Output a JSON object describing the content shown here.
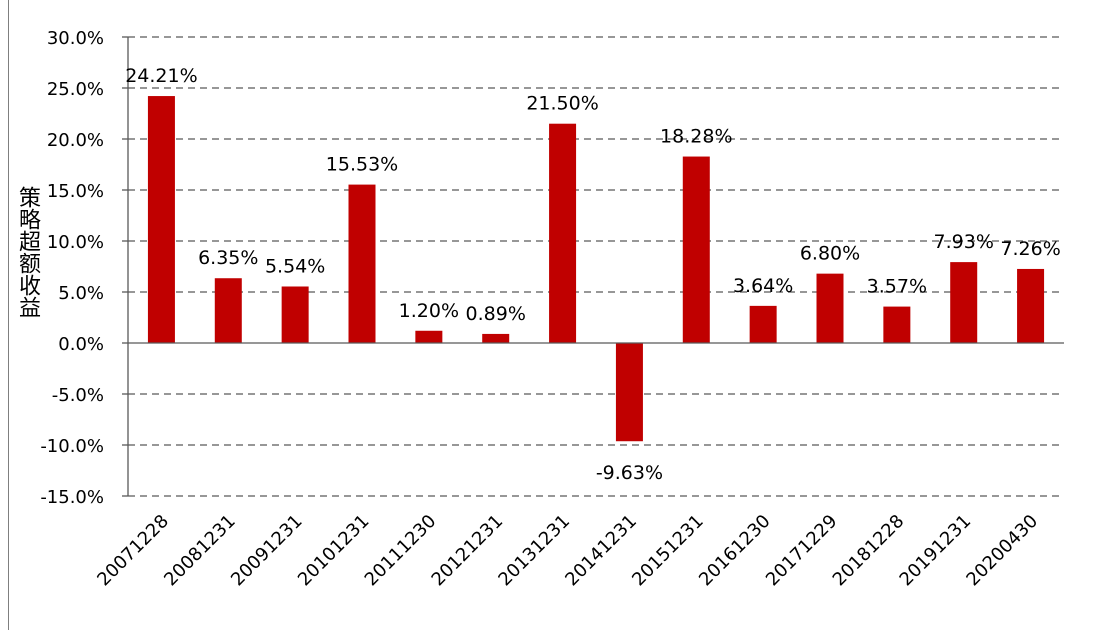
{
  "chart_data": {
    "type": "bar",
    "title": "",
    "xlabel": "",
    "ylabel": "策略超额收益",
    "categories": [
      "20071228",
      "20081231",
      "20091231",
      "20101231",
      "20111230",
      "20121231",
      "20131231",
      "20141231",
      "20151231",
      "20161230",
      "20171229",
      "20181228",
      "20191231",
      "20200430"
    ],
    "values": [
      24.21,
      6.35,
      5.54,
      15.53,
      1.2,
      0.89,
      21.5,
      -9.63,
      18.28,
      3.64,
      6.8,
      3.57,
      7.93,
      7.26
    ],
    "data_labels": [
      "24.21%",
      "6.35%",
      "5.54%",
      "15.53%",
      "1.20%",
      "0.89%",
      "21.50%",
      "-9.63%",
      "18.28%",
      "3.64%",
      "6.80%",
      "3.57%",
      "7.93%",
      "7.26%"
    ],
    "ylim": [
      -15,
      30
    ],
    "yticks": [
      30,
      25,
      20,
      15,
      10,
      5,
      0,
      -5,
      -10,
      -15
    ],
    "ytick_labels": [
      "30.0%",
      "25.0%",
      "20.0%",
      "15.0%",
      "10.0%",
      "5.0%",
      "0.0%",
      "-5.0%",
      "-10.0%",
      "-15.0%"
    ],
    "grid": true,
    "grid_style": "dashed",
    "legend": "none",
    "colors": {
      "bar": "#c00000",
      "grid": "#595959",
      "axis": "#595959",
      "frame": "#7f7f7f"
    }
  }
}
